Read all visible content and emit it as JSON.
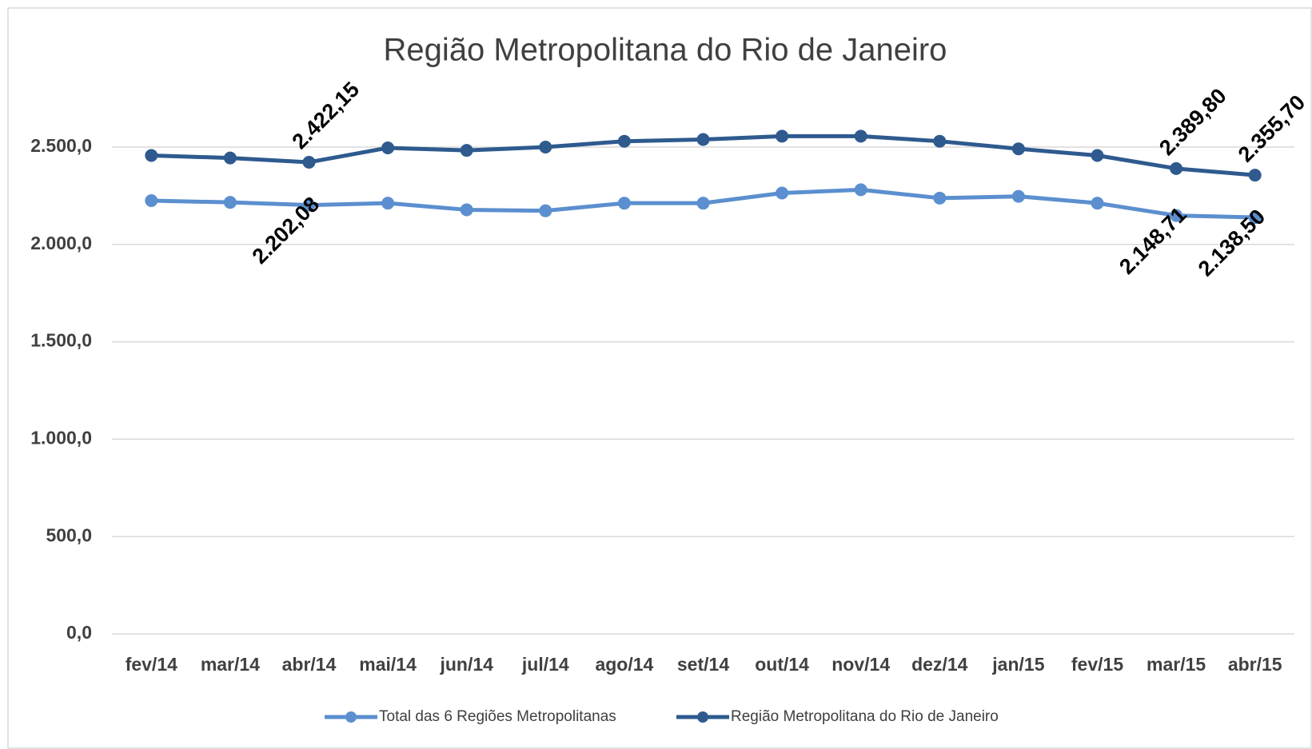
{
  "chart_data": {
    "type": "line",
    "title": "Região Metropolitana do Rio de Janeiro",
    "categories": [
      "fev/14",
      "mar/14",
      "abr/14",
      "mai/14",
      "jun/14",
      "jul/14",
      "ago/14",
      "set/14",
      "out/14",
      "nov/14",
      "dez/14",
      "jan/15",
      "fev/15",
      "mar/15",
      "abr/15"
    ],
    "series": [
      {
        "name": "Total das 6 Regiões Metropolitanas",
        "color": "#5b8fcf",
        "values": [
          2225,
          2216,
          2202.08,
          2212,
          2178,
          2173,
          2212,
          2212,
          2264,
          2281,
          2238,
          2247,
          2212,
          2148.71,
          2138.5
        ],
        "value_labels": [
          null,
          null,
          "2.202,08",
          null,
          null,
          null,
          null,
          null,
          null,
          null,
          null,
          null,
          null,
          "2.148,71",
          "2.138,50"
        ]
      },
      {
        "name": "Região Metropolitana do Rio de Janeiro",
        "color": "#2e5a8e",
        "values": [
          2457,
          2444,
          2422.15,
          2496,
          2483,
          2500,
          2530,
          2539,
          2556,
          2556,
          2530,
          2491,
          2457,
          2389.8,
          2355.7
        ],
        "value_labels": [
          null,
          null,
          "2.422,15",
          null,
          null,
          null,
          null,
          null,
          null,
          null,
          null,
          null,
          null,
          "2.389,80",
          "2.355,70"
        ]
      }
    ],
    "ylim": [
      0,
      2500
    ],
    "yticks": [
      {
        "value": 0,
        "label": "0,0"
      },
      {
        "value": 500,
        "label": "500,0"
      },
      {
        "value": 1000,
        "label": "1.000,0"
      },
      {
        "value": 1500,
        "label": "1.500,0"
      },
      {
        "value": 2000,
        "label": "2.000,0"
      },
      {
        "value": 2500,
        "label": "2.500,0"
      }
    ],
    "grid": true
  }
}
